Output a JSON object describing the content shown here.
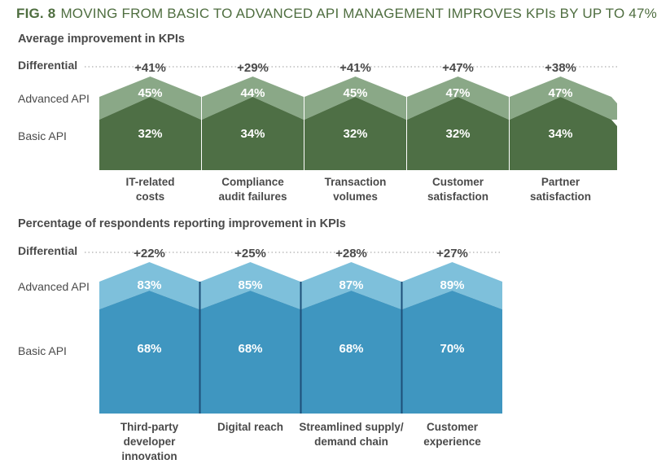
{
  "header": {
    "fig_no": "FIG. 8",
    "title": "MOVING FROM BASIC TO ADVANCED API MANAGEMENT IMPROVES KPIs BY UP TO 47%"
  },
  "colors": {
    "title": "#4f6e40",
    "green_basic": "#4e6f45",
    "green_advanced": "#8aa887",
    "blue_basic": "#3f96c0",
    "blue_advanced": "#7ec0db",
    "blue_divider": "#1e4f78",
    "text": "#4a4a4a"
  },
  "row_labels": {
    "differential": "Differential",
    "advanced": "Advanced API",
    "basic": "Basic API"
  },
  "chart_data": [
    {
      "type": "bar",
      "title": "Average improvement in KPIs",
      "categories": [
        "IT-related costs",
        "Compliance audit failures",
        "Transaction volumes",
        "Customer satisfaction",
        "Partner satisfaction"
      ],
      "category_lines": [
        [
          "IT-related",
          "costs"
        ],
        [
          "Compliance",
          "audit failures"
        ],
        [
          "Transaction",
          "volumes"
        ],
        [
          "Customer",
          "satisfaction"
        ],
        [
          "Partner",
          "satisfaction"
        ]
      ],
      "series": [
        {
          "name": "Basic API",
          "values": [
            32,
            34,
            32,
            32,
            34
          ],
          "labels": [
            "32%",
            "34%",
            "32%",
            "32%",
            "34%"
          ]
        },
        {
          "name": "Advanced API",
          "values": [
            45,
            44,
            45,
            47,
            47
          ],
          "labels": [
            "45%",
            "44%",
            "45%",
            "47%",
            "47%"
          ]
        }
      ],
      "differential": {
        "name": "Differential",
        "values": [
          41,
          29,
          41,
          47,
          38
        ],
        "labels": [
          "+41%",
          "+29%",
          "+41%",
          "+47%",
          "+38%"
        ]
      }
    },
    {
      "type": "bar",
      "title": "Percentage of respondents reporting improvement in KPIs",
      "categories": [
        "Third-party developer innovation",
        "Digital reach",
        "Streamlined supply/ demand chain",
        "Customer experience"
      ],
      "category_lines": [
        [
          "Third-party",
          "developer innovation"
        ],
        [
          "Digital reach"
        ],
        [
          "Streamlined supply/",
          "demand chain"
        ],
        [
          "Customer",
          "experience"
        ]
      ],
      "series": [
        {
          "name": "Basic API",
          "values": [
            68,
            68,
            68,
            70
          ],
          "labels": [
            "68%",
            "68%",
            "68%",
            "70%"
          ]
        },
        {
          "name": "Advanced API",
          "values": [
            83,
            85,
            87,
            89
          ],
          "labels": [
            "83%",
            "85%",
            "87%",
            "89%"
          ]
        }
      ],
      "differential": {
        "name": "Differential",
        "values": [
          22,
          25,
          28,
          27
        ],
        "labels": [
          "+22%",
          "+25%",
          "+28%",
          "+27%"
        ]
      }
    }
  ]
}
